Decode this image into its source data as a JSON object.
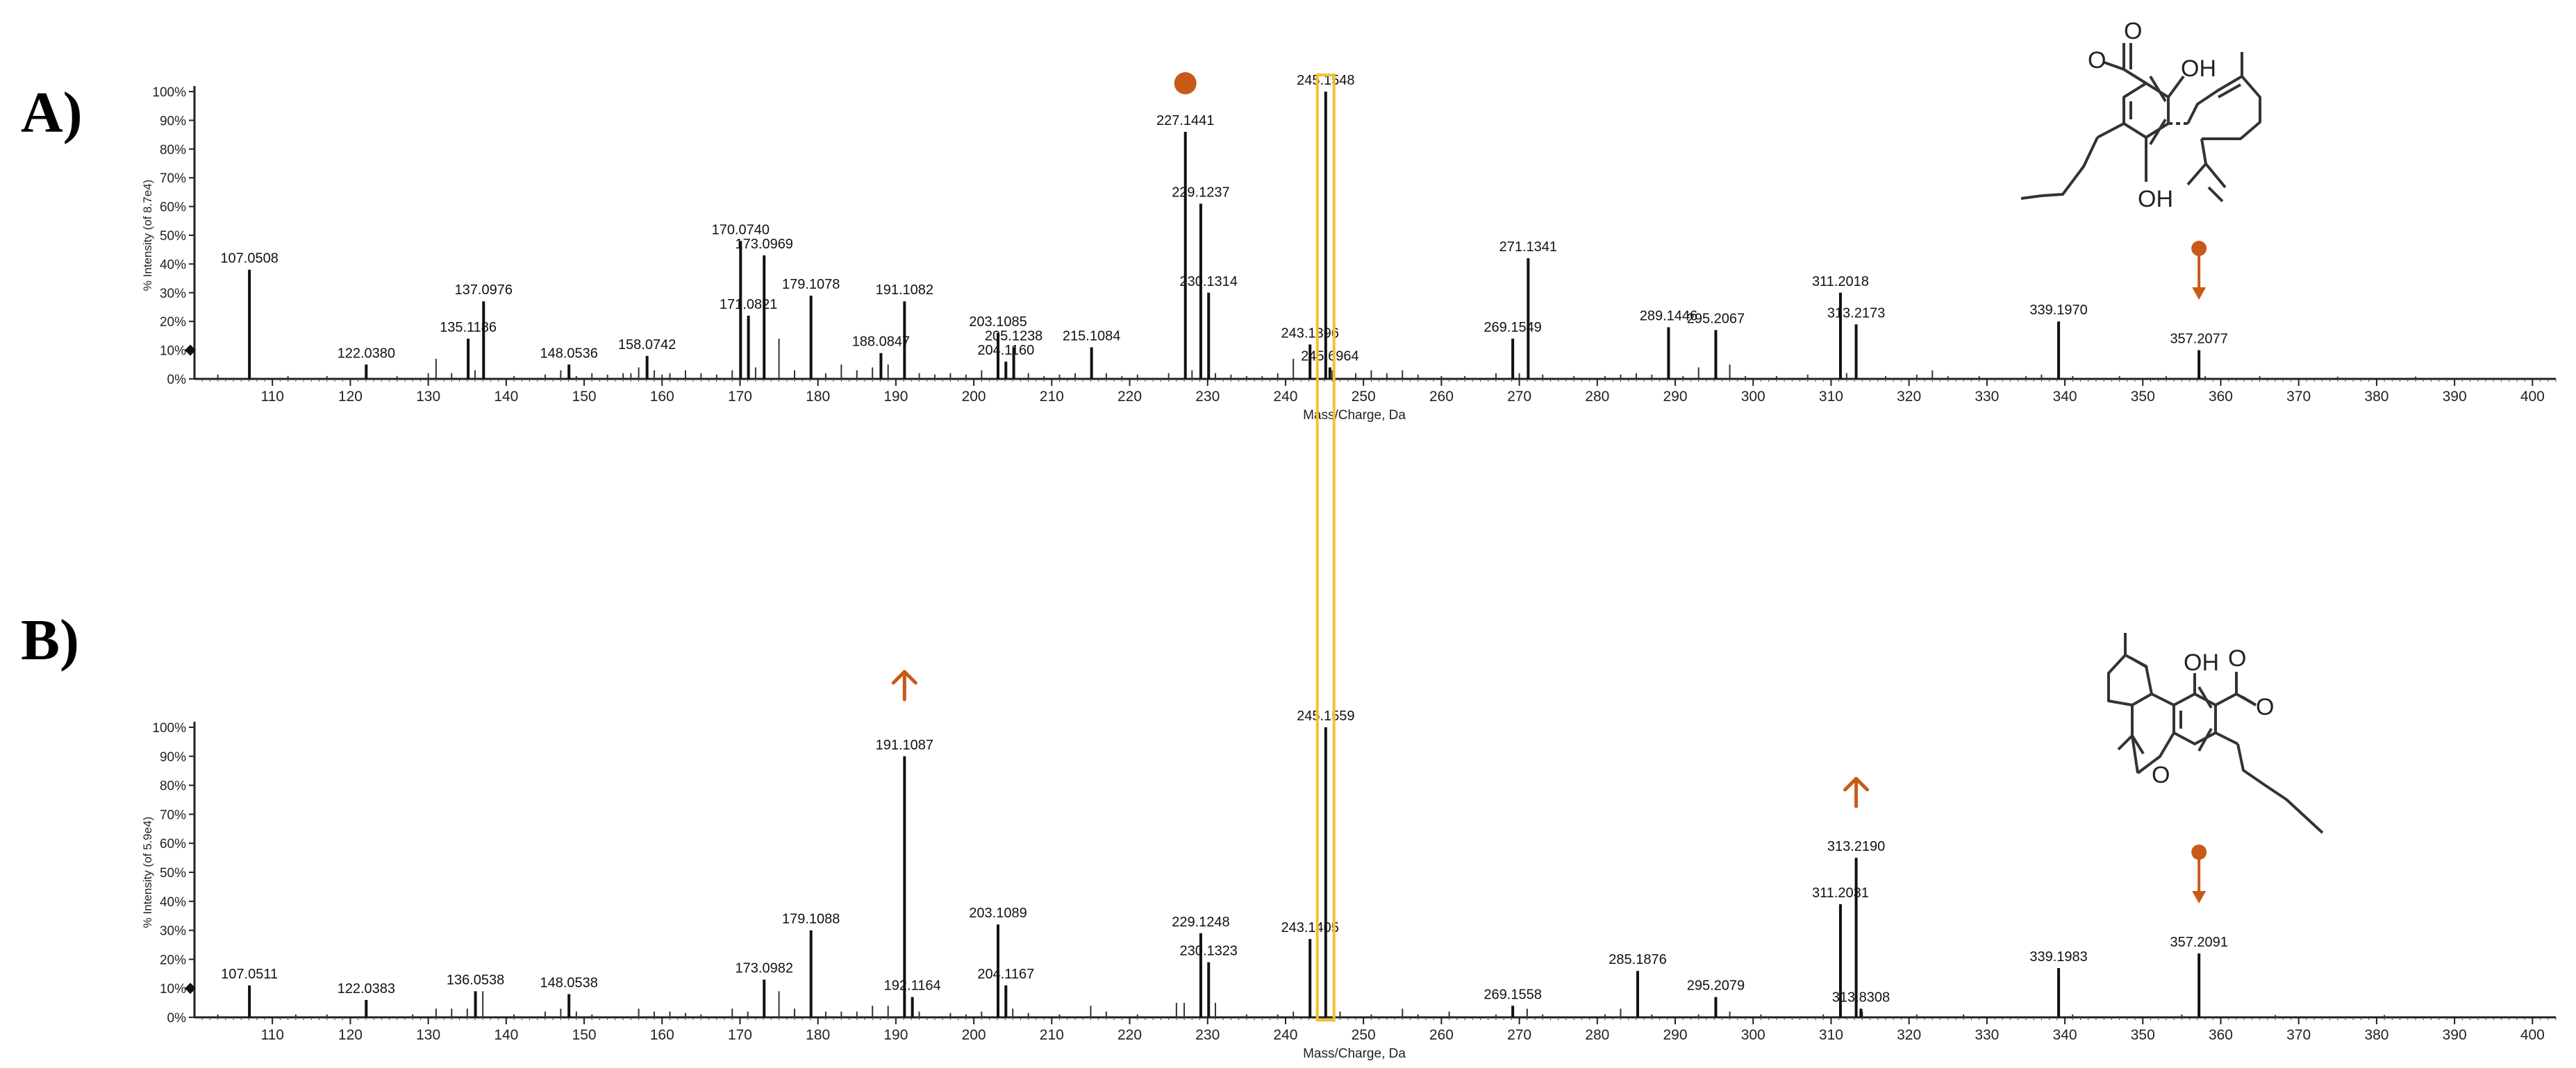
{
  "figure": {
    "accent": "#c85a17",
    "highlight": "#f2c12e",
    "common_xlabel": "Mass/Charge, Da"
  },
  "chart_data": [
    {
      "type": "bar",
      "panel_label": "A)",
      "ylabel": "% Intensity (of 8.7e4)",
      "xlabel": "Mass/Charge, Da",
      "xlim": [
        100,
        403
      ],
      "ylim": [
        0,
        100
      ],
      "xticks": [
        110,
        120,
        130,
        140,
        150,
        160,
        170,
        180,
        190,
        200,
        210,
        220,
        230,
        240,
        250,
        260,
        270,
        280,
        290,
        300,
        310,
        320,
        330,
        340,
        350,
        360,
        370,
        380,
        390,
        400
      ],
      "yticks": [
        "0%",
        "10%",
        "20%",
        "30%",
        "40%",
        "50%",
        "60%",
        "70%",
        "80%",
        "90%",
        "100%"
      ],
      "peaks": [
        {
          "mz": 107.0508,
          "intensity": 38,
          "label": "107.0508"
        },
        {
          "mz": 122.038,
          "intensity": 5,
          "label": "122.0380"
        },
        {
          "mz": 135.1186,
          "intensity": 14,
          "label": "135.1186"
        },
        {
          "mz": 137.0976,
          "intensity": 27,
          "label": "137.0976"
        },
        {
          "mz": 148.0536,
          "intensity": 5,
          "label": "148.0536"
        },
        {
          "mz": 158.0742,
          "intensity": 8,
          "label": "158.0742"
        },
        {
          "mz": 170.074,
          "intensity": 48,
          "label": "170.0740"
        },
        {
          "mz": 171.0821,
          "intensity": 22,
          "label": "171.0821"
        },
        {
          "mz": 173.0969,
          "intensity": 43,
          "label": "173.0969"
        },
        {
          "mz": 179.1078,
          "intensity": 29,
          "label": "179.1078"
        },
        {
          "mz": 188.0847,
          "intensity": 9,
          "label": "188.0847"
        },
        {
          "mz": 191.1082,
          "intensity": 27,
          "label": "191.1082"
        },
        {
          "mz": 203.1085,
          "intensity": 16,
          "label": "203.1085"
        },
        {
          "mz": 204.116,
          "intensity": 6,
          "label": "204.1160"
        },
        {
          "mz": 205.1238,
          "intensity": 11,
          "label": "205.1238"
        },
        {
          "mz": 215.1084,
          "intensity": 11,
          "label": "215.1084"
        },
        {
          "mz": 227.1441,
          "intensity": 86,
          "label": "227.1441"
        },
        {
          "mz": 229.1237,
          "intensity": 61,
          "label": "229.1237"
        },
        {
          "mz": 230.1314,
          "intensity": 30,
          "label": "230.1314"
        },
        {
          "mz": 243.1396,
          "intensity": 12,
          "label": "243.1396"
        },
        {
          "mz": 245.1548,
          "intensity": 100,
          "label": "245.1548"
        },
        {
          "mz": 245.6964,
          "intensity": 4,
          "label": "245.6964"
        },
        {
          "mz": 269.1549,
          "intensity": 14,
          "label": "269.1549"
        },
        {
          "mz": 271.1341,
          "intensity": 42,
          "label": "271.1341"
        },
        {
          "mz": 289.1446,
          "intensity": 18,
          "label": "289.1446"
        },
        {
          "mz": 295.2067,
          "intensity": 17,
          "label": "295.2067"
        },
        {
          "mz": 311.2018,
          "intensity": 30,
          "label": "311.2018"
        },
        {
          "mz": 313.2173,
          "intensity": 19,
          "label": "313.2173"
        },
        {
          "mz": 339.197,
          "intensity": 20,
          "label": "339.1970"
        },
        {
          "mz": 357.2077,
          "intensity": 10,
          "label": "357.2077"
        }
      ],
      "minor_peaks": [
        {
          "mz": 103,
          "intensity": 1.5
        },
        {
          "mz": 112,
          "intensity": 1
        },
        {
          "mz": 117,
          "intensity": 1
        },
        {
          "mz": 126,
          "intensity": 1
        },
        {
          "mz": 130,
          "intensity": 2
        },
        {
          "mz": 131,
          "intensity": 7
        },
        {
          "mz": 133,
          "intensity": 2
        },
        {
          "mz": 136,
          "intensity": 3
        },
        {
          "mz": 141,
          "intensity": 1
        },
        {
          "mz": 145,
          "intensity": 1.5
        },
        {
          "mz": 147,
          "intensity": 3
        },
        {
          "mz": 149,
          "intensity": 1
        },
        {
          "mz": 151,
          "intensity": 2
        },
        {
          "mz": 153,
          "intensity": 1.5
        },
        {
          "mz": 155,
          "intensity": 2
        },
        {
          "mz": 156,
          "intensity": 2
        },
        {
          "mz": 157,
          "intensity": 4
        },
        {
          "mz": 159,
          "intensity": 3
        },
        {
          "mz": 160,
          "intensity": 1.5
        },
        {
          "mz": 161,
          "intensity": 2
        },
        {
          "mz": 163,
          "intensity": 3
        },
        {
          "mz": 165,
          "intensity": 2
        },
        {
          "mz": 167,
          "intensity": 1.5
        },
        {
          "mz": 169,
          "intensity": 3
        },
        {
          "mz": 172,
          "intensity": 4
        },
        {
          "mz": 175,
          "intensity": 14
        },
        {
          "mz": 177,
          "intensity": 3
        },
        {
          "mz": 181,
          "intensity": 2
        },
        {
          "mz": 183,
          "intensity": 5
        },
        {
          "mz": 185,
          "intensity": 3
        },
        {
          "mz": 187,
          "intensity": 4
        },
        {
          "mz": 189,
          "intensity": 5
        },
        {
          "mz": 193,
          "intensity": 2
        },
        {
          "mz": 195,
          "intensity": 1.5
        },
        {
          "mz": 197,
          "intensity": 2
        },
        {
          "mz": 199,
          "intensity": 1.5
        },
        {
          "mz": 201,
          "intensity": 3
        },
        {
          "mz": 207,
          "intensity": 2
        },
        {
          "mz": 209,
          "intensity": 1
        },
        {
          "mz": 211,
          "intensity": 1.5
        },
        {
          "mz": 213,
          "intensity": 2
        },
        {
          "mz": 217,
          "intensity": 2
        },
        {
          "mz": 219,
          "intensity": 1
        },
        {
          "mz": 221,
          "intensity": 1.5
        },
        {
          "mz": 225,
          "intensity": 2
        },
        {
          "mz": 228,
          "intensity": 3
        },
        {
          "mz": 231,
          "intensity": 2
        },
        {
          "mz": 233,
          "intensity": 1.5
        },
        {
          "mz": 235,
          "intensity": 1
        },
        {
          "mz": 237,
          "intensity": 1
        },
        {
          "mz": 239,
          "intensity": 2
        },
        {
          "mz": 241,
          "intensity": 7
        },
        {
          "mz": 244,
          "intensity": 2
        },
        {
          "mz": 246,
          "intensity": 3
        },
        {
          "mz": 249,
          "intensity": 2
        },
        {
          "mz": 251,
          "intensity": 3
        },
        {
          "mz": 253,
          "intensity": 2
        },
        {
          "mz": 255,
          "intensity": 3
        },
        {
          "mz": 257,
          "intensity": 1.5
        },
        {
          "mz": 260,
          "intensity": 1
        },
        {
          "mz": 263,
          "intensity": 1
        },
        {
          "mz": 267,
          "intensity": 2
        },
        {
          "mz": 270,
          "intensity": 2
        },
        {
          "mz": 273,
          "intensity": 1.5
        },
        {
          "mz": 277,
          "intensity": 1
        },
        {
          "mz": 281,
          "intensity": 1
        },
        {
          "mz": 283,
          "intensity": 1.5
        },
        {
          "mz": 285,
          "intensity": 2
        },
        {
          "mz": 287,
          "intensity": 1.5
        },
        {
          "mz": 291,
          "intensity": 1
        },
        {
          "mz": 293,
          "intensity": 4
        },
        {
          "mz": 297,
          "intensity": 5
        },
        {
          "mz": 299,
          "intensity": 1
        },
        {
          "mz": 303,
          "intensity": 1
        },
        {
          "mz": 307,
          "intensity": 1.5
        },
        {
          "mz": 312,
          "intensity": 2
        },
        {
          "mz": 317,
          "intensity": 1
        },
        {
          "mz": 321,
          "intensity": 1.5
        },
        {
          "mz": 323,
          "intensity": 3
        },
        {
          "mz": 325,
          "intensity": 1
        },
        {
          "mz": 329,
          "intensity": 1
        },
        {
          "mz": 335,
          "intensity": 1
        },
        {
          "mz": 337,
          "intensity": 1.5
        },
        {
          "mz": 341,
          "intensity": 1
        },
        {
          "mz": 347,
          "intensity": 1
        },
        {
          "mz": 353,
          "intensity": 1
        },
        {
          "mz": 358,
          "intensity": 1
        },
        {
          "mz": 365,
          "intensity": 1
        },
        {
          "mz": 375,
          "intensity": 0.8
        },
        {
          "mz": 385,
          "intensity": 0.8
        }
      ],
      "annotations": {
        "dot_on_mz": 227.1441,
        "precursor_mz": 357.2077
      },
      "structure": {
        "atom_labels": [
          "O",
          "O",
          "OH",
          "OH"
        ]
      }
    },
    {
      "type": "bar",
      "panel_label": "B)",
      "ylabel": "% Intensity (of 5.9e4)",
      "xlabel": "Mass/Charge, Da",
      "xlim": [
        100,
        403
      ],
      "ylim": [
        0,
        100
      ],
      "xticks": [
        110,
        120,
        130,
        140,
        150,
        160,
        170,
        180,
        190,
        200,
        210,
        220,
        230,
        240,
        250,
        260,
        270,
        280,
        290,
        300,
        310,
        320,
        330,
        340,
        350,
        360,
        370,
        380,
        390,
        400
      ],
      "yticks": [
        "0%",
        "10%",
        "20%",
        "30%",
        "40%",
        "50%",
        "60%",
        "70%",
        "80%",
        "90%",
        "100%"
      ],
      "peaks": [
        {
          "mz": 107.0511,
          "intensity": 11,
          "label": "107.0511"
        },
        {
          "mz": 122.0383,
          "intensity": 6,
          "label": "122.0383"
        },
        {
          "mz": 136.0538,
          "intensity": 9,
          "label": "136.0538"
        },
        {
          "mz": 148.0538,
          "intensity": 8,
          "label": "148.0538"
        },
        {
          "mz": 173.0982,
          "intensity": 13,
          "label": "173.0982"
        },
        {
          "mz": 179.1088,
          "intensity": 30,
          "label": "179.1088"
        },
        {
          "mz": 191.1087,
          "intensity": 90,
          "label": "191.1087"
        },
        {
          "mz": 192.1164,
          "intensity": 7,
          "label": "192.1164"
        },
        {
          "mz": 203.1089,
          "intensity": 32,
          "label": "203.1089"
        },
        {
          "mz": 204.1167,
          "intensity": 11,
          "label": "204.1167"
        },
        {
          "mz": 229.1248,
          "intensity": 29,
          "label": "229.1248"
        },
        {
          "mz": 230.1323,
          "intensity": 19,
          "label": "230.1323"
        },
        {
          "mz": 243.1405,
          "intensity": 27,
          "label": "243.1405"
        },
        {
          "mz": 245.1559,
          "intensity": 100,
          "label": "245.1559"
        },
        {
          "mz": 269.1558,
          "intensity": 4,
          "label": "269.1558"
        },
        {
          "mz": 285.1876,
          "intensity": 16,
          "label": "285.1876"
        },
        {
          "mz": 295.2079,
          "intensity": 7,
          "label": "295.2079"
        },
        {
          "mz": 311.2031,
          "intensity": 39,
          "label": "311.2031"
        },
        {
          "mz": 313.219,
          "intensity": 55,
          "label": "313.2190"
        },
        {
          "mz": 313.8308,
          "intensity": 3,
          "label": "313.8308"
        },
        {
          "mz": 339.1983,
          "intensity": 17,
          "label": "339.1983"
        },
        {
          "mz": 357.2091,
          "intensity": 22,
          "label": "357.2091"
        }
      ],
      "minor_peaks": [
        {
          "mz": 103,
          "intensity": 1
        },
        {
          "mz": 113,
          "intensity": 1
        },
        {
          "mz": 117,
          "intensity": 1
        },
        {
          "mz": 128,
          "intensity": 1
        },
        {
          "mz": 131,
          "intensity": 3
        },
        {
          "mz": 133,
          "intensity": 3
        },
        {
          "mz": 135,
          "intensity": 3
        },
        {
          "mz": 137,
          "intensity": 9
        },
        {
          "mz": 141,
          "intensity": 1
        },
        {
          "mz": 145,
          "intensity": 2
        },
        {
          "mz": 147,
          "intensity": 3
        },
        {
          "mz": 149,
          "intensity": 2
        },
        {
          "mz": 151,
          "intensity": 1
        },
        {
          "mz": 157,
          "intensity": 3
        },
        {
          "mz": 159,
          "intensity": 2
        },
        {
          "mz": 161,
          "intensity": 2
        },
        {
          "mz": 163,
          "intensity": 1.5
        },
        {
          "mz": 165,
          "intensity": 1
        },
        {
          "mz": 169,
          "intensity": 3
        },
        {
          "mz": 171,
          "intensity": 2
        },
        {
          "mz": 175,
          "intensity": 9
        },
        {
          "mz": 177,
          "intensity": 3
        },
        {
          "mz": 181,
          "intensity": 2
        },
        {
          "mz": 183,
          "intensity": 2
        },
        {
          "mz": 185,
          "intensity": 2
        },
        {
          "mz": 187,
          "intensity": 4
        },
        {
          "mz": 189,
          "intensity": 4
        },
        {
          "mz": 193,
          "intensity": 2
        },
        {
          "mz": 197,
          "intensity": 1.5
        },
        {
          "mz": 199,
          "intensity": 1
        },
        {
          "mz": 201,
          "intensity": 2
        },
        {
          "mz": 205,
          "intensity": 3
        },
        {
          "mz": 207,
          "intensity": 1.5
        },
        {
          "mz": 211,
          "intensity": 1
        },
        {
          "mz": 215,
          "intensity": 4
        },
        {
          "mz": 217,
          "intensity": 2
        },
        {
          "mz": 221,
          "intensity": 1
        },
        {
          "mz": 226,
          "intensity": 5
        },
        {
          "mz": 227,
          "intensity": 5
        },
        {
          "mz": 231,
          "intensity": 5
        },
        {
          "mz": 235,
          "intensity": 1
        },
        {
          "mz": 239,
          "intensity": 1
        },
        {
          "mz": 241,
          "intensity": 2
        },
        {
          "mz": 244,
          "intensity": 3
        },
        {
          "mz": 247,
          "intensity": 2
        },
        {
          "mz": 251,
          "intensity": 1
        },
        {
          "mz": 255,
          "intensity": 3
        },
        {
          "mz": 257,
          "intensity": 1
        },
        {
          "mz": 261,
          "intensity": 2
        },
        {
          "mz": 267,
          "intensity": 1
        },
        {
          "mz": 271,
          "intensity": 3
        },
        {
          "mz": 273,
          "intensity": 1
        },
        {
          "mz": 281,
          "intensity": 1
        },
        {
          "mz": 283,
          "intensity": 3
        },
        {
          "mz": 287,
          "intensity": 1
        },
        {
          "mz": 293,
          "intensity": 1
        },
        {
          "mz": 297,
          "intensity": 2
        },
        {
          "mz": 301,
          "intensity": 1
        },
        {
          "mz": 309,
          "intensity": 1
        },
        {
          "mz": 314,
          "intensity": 2
        },
        {
          "mz": 321,
          "intensity": 1
        },
        {
          "mz": 327,
          "intensity": 1
        },
        {
          "mz": 341,
          "intensity": 1
        },
        {
          "mz": 355,
          "intensity": 1
        },
        {
          "mz": 367,
          "intensity": 0.8
        },
        {
          "mz": 381,
          "intensity": 0.8
        }
      ],
      "annotations": {
        "up_arrows_on_mz": [
          191.1087,
          313.219
        ],
        "precursor_mz": 357.2091
      },
      "structure": {
        "atom_labels": [
          "O",
          "O",
          "O",
          "OH"
        ]
      }
    }
  ]
}
